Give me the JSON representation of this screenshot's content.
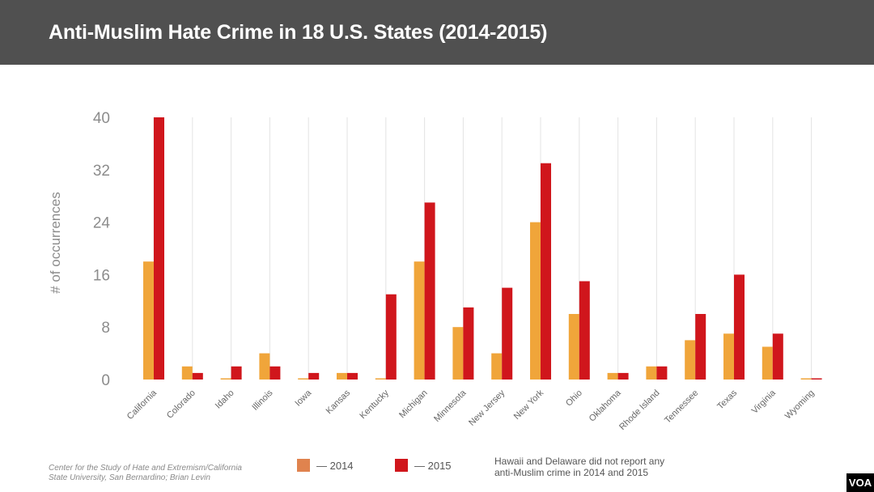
{
  "title": "Anti-Muslim Hate Crime in 18 U.S. States (2014-2015)",
  "chart_data": {
    "type": "bar",
    "title": "Anti-Muslim Hate Crime in 18 U.S. States (2014-2015)",
    "xlabel": "",
    "ylabel": "# of occurrences",
    "ylim": [
      0,
      40
    ],
    "yticks": [
      0,
      8,
      16,
      24,
      32,
      40
    ],
    "grid": "vertical",
    "legend_position": "bottom",
    "categories": [
      "California",
      "Colorado",
      "Idaho",
      "Illinois",
      "Iowa",
      "Kansas",
      "Kentucky",
      "Michigan",
      "Minnesota",
      "New Jersey",
      "New York",
      "Ohio",
      "Oklahoma",
      "Rhode Island",
      "Tennessee",
      "Texas",
      "Virginia",
      "Wyoming"
    ],
    "series": [
      {
        "name": "2014",
        "color": "#F0A53A",
        "values": [
          18,
          2,
          0,
          4,
          0,
          1,
          0,
          18,
          8,
          4,
          24,
          10,
          1,
          2,
          6,
          7,
          5,
          0
        ]
      },
      {
        "name": "2015",
        "color": "#D0161C",
        "values": [
          40,
          1,
          2,
          2,
          1,
          1,
          13,
          27,
          11,
          14,
          33,
          15,
          1,
          2,
          10,
          16,
          7,
          0
        ]
      }
    ]
  },
  "legend": {
    "item_2014": "— 2014",
    "item_2015": "— 2015",
    "swatch_2014_color": "#E0834E",
    "swatch_2015_color": "#D0161C"
  },
  "footnote": "Hawaii and Delaware did not report any anti-Muslim crime in 2014 and 2015",
  "source": "Center for the Study of Hate and Extremism/California State University, San Bernardino; Brian Levin",
  "logo": "VOA"
}
